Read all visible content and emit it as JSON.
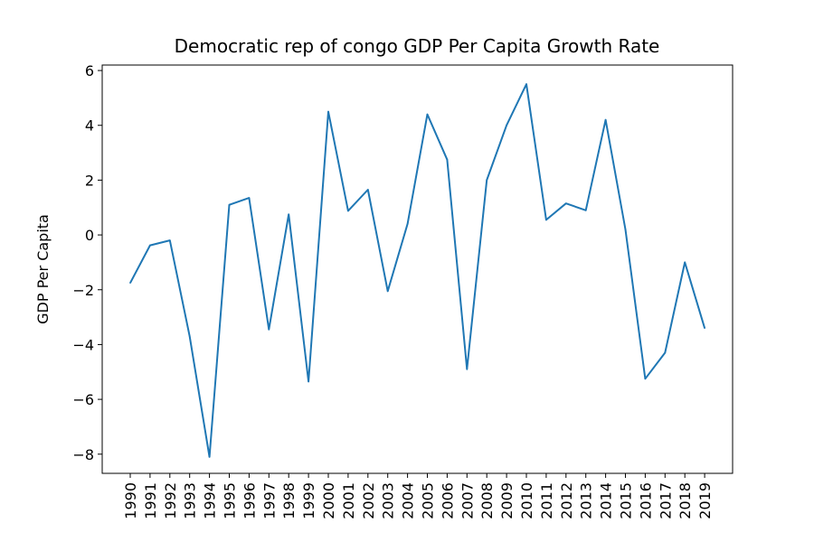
{
  "chart_data": {
    "type": "line",
    "title": "Democratic rep of congo GDP Per Capita Growth Rate",
    "xlabel": "",
    "ylabel": "GDP Per Capita",
    "ylim": [
      -8.7,
      6.2
    ],
    "yticks": [
      -8,
      -6,
      -4,
      -2,
      0,
      2,
      4,
      6
    ],
    "ytick_labels": [
      "−8",
      "−6",
      "−4",
      "−2",
      "0",
      "2",
      "4",
      "6"
    ],
    "categories": [
      "1990",
      "1991",
      "1992",
      "1993",
      "1994",
      "1995",
      "1996",
      "1997",
      "1998",
      "1999",
      "2000",
      "2001",
      "2002",
      "2003",
      "2004",
      "2005",
      "2006",
      "2007",
      "2008",
      "2009",
      "2010",
      "2011",
      "2012",
      "2013",
      "2014",
      "2015",
      "2016",
      "2017",
      "2018",
      "2019"
    ],
    "series": [
      {
        "color": "#1f77b4",
        "values": [
          -1.75,
          -0.38,
          -0.2,
          -3.7,
          -8.1,
          1.1,
          1.35,
          -3.45,
          0.75,
          -5.35,
          4.5,
          0.88,
          1.65,
          -2.05,
          0.4,
          4.4,
          2.75,
          -4.9,
          2.0,
          4.0,
          5.5,
          0.55,
          1.15,
          0.9,
          4.2,
          0.2,
          -5.25,
          -4.3,
          -1.0,
          -3.4
        ]
      }
    ],
    "grid": false,
    "legend": "none"
  }
}
